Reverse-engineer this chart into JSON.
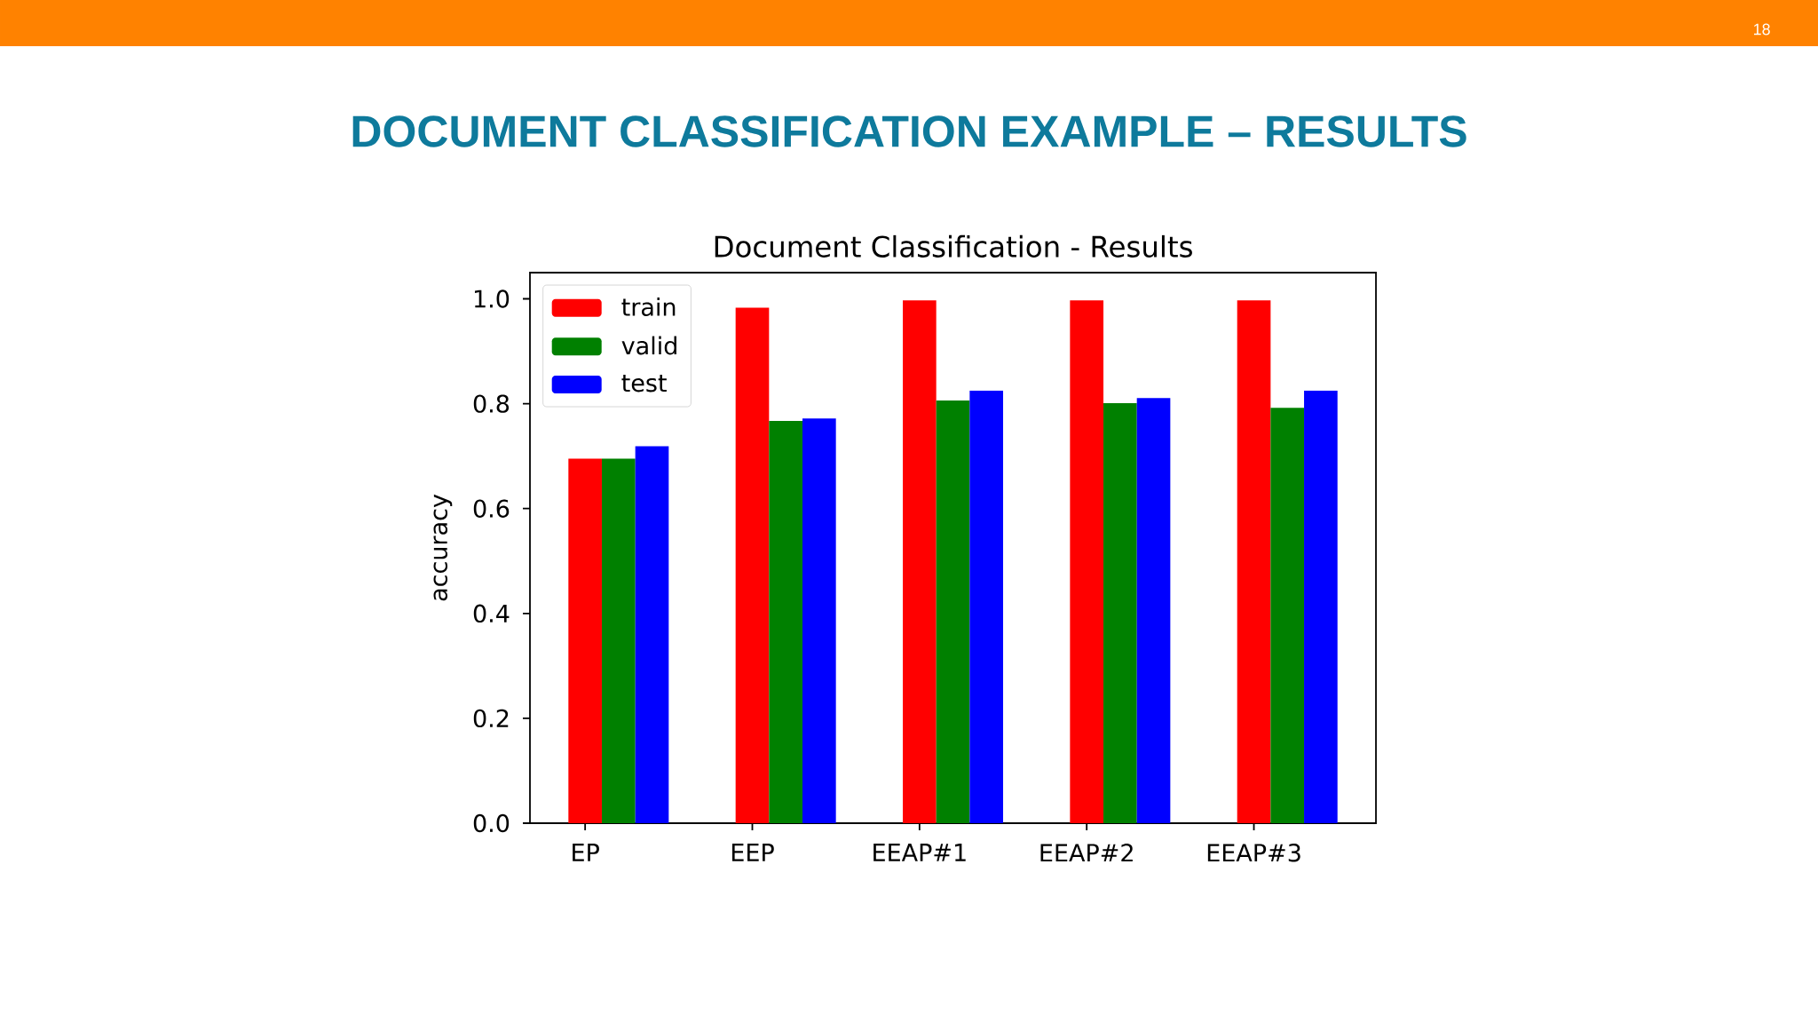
{
  "chart_data": {
    "type": "bar",
    "title": "DOCUMENT CLASSIFICATION EXAMPLE – RESULTS",
    "subtitle": "Document Classification - Results",
    "ylabel": "accuracy",
    "categories": [
      "EP",
      "EEP",
      "EEAP#1",
      "EEAP#2",
      "EEAP#3"
    ],
    "series": [
      {
        "name": "train",
        "color": "#ff0000",
        "values": [
          0.695,
          0.983,
          0.997,
          0.997,
          0.997
        ]
      },
      {
        "name": "valid",
        "color": "#008000",
        "values": [
          0.695,
          0.767,
          0.806,
          0.801,
          0.792
        ]
      },
      {
        "name": "test",
        "color": "#0000ff",
        "values": [
          0.719,
          0.772,
          0.825,
          0.811,
          0.825
        ]
      }
    ],
    "ylim": [
      0,
      1.05
    ],
    "yticks": [
      {
        "value": 0,
        "label": "0.0"
      },
      0.2,
      0.4,
      0.6,
      0.8,
      {
        "value": 1,
        "label": "1.0"
      }
    ],
    "legend": "top left",
    "annotations": [
      "18"
    ]
  }
}
